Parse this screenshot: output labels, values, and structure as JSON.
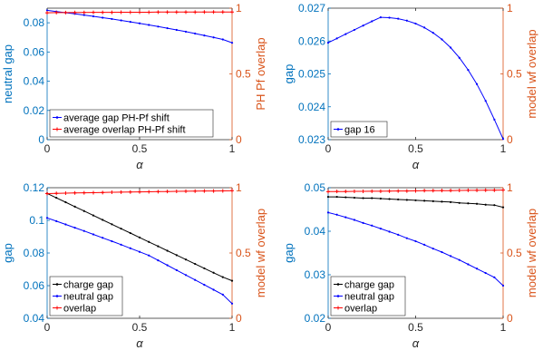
{
  "colors": {
    "left_axis": "#0072BD",
    "right_axis": "#D95319",
    "black": "#000000",
    "blue": "#0000FF",
    "red": "#FF0000"
  },
  "chart_data": [
    {
      "type": "line",
      "xlabel": "α",
      "ylabel_left": "neutral gap",
      "ylabel_right": "PH Pf overlap",
      "xlim": [
        0,
        1
      ],
      "ylim_left": [
        0,
        0.09
      ],
      "ylim_right": [
        0,
        1
      ],
      "xticks": [
        "0",
        "0.5",
        "1"
      ],
      "yticks_left": [
        "0",
        "0.02",
        "0.04",
        "0.06",
        "0.08"
      ],
      "yticks_right": [
        "0",
        "0.5",
        "1"
      ],
      "legend_position": "bottom-left",
      "series": [
        {
          "name": "average gap PH-Pf shift",
          "axis": "left",
          "color": "#0000FF",
          "marker": "dot",
          "x": [
            0,
            0.05,
            0.1,
            0.15,
            0.2,
            0.25,
            0.3,
            0.35,
            0.4,
            0.45,
            0.5,
            0.55,
            0.6,
            0.65,
            0.7,
            0.75,
            0.8,
            0.85,
            0.9,
            0.95,
            1
          ],
          "y": [
            0.0885,
            0.0877,
            0.0869,
            0.0861,
            0.0853,
            0.0844,
            0.0835,
            0.0826,
            0.0816,
            0.0806,
            0.0796,
            0.0785,
            0.0774,
            0.0763,
            0.0751,
            0.0739,
            0.0726,
            0.0713,
            0.07,
            0.0686,
            0.0663
          ]
        },
        {
          "name": "average overlap PH-Pf shift",
          "axis": "right",
          "color": "#FF0000",
          "marker": "plus",
          "x": [
            0,
            0.05,
            0.1,
            0.15,
            0.2,
            0.25,
            0.3,
            0.35,
            0.4,
            0.45,
            0.5,
            0.55,
            0.6,
            0.65,
            0.7,
            0.75,
            0.8,
            0.85,
            0.9,
            0.95,
            1
          ],
          "y": [
            0.965,
            0.966,
            0.966,
            0.967,
            0.967,
            0.968,
            0.968,
            0.968,
            0.969,
            0.969,
            0.969,
            0.969,
            0.97,
            0.97,
            0.97,
            0.97,
            0.97,
            0.971,
            0.971,
            0.971,
            0.971
          ]
        }
      ]
    },
    {
      "type": "line",
      "xlabel": "α",
      "ylabel_left": "gap",
      "ylabel_right": "model wf overlap",
      "xlim": [
        0,
        1
      ],
      "ylim_left": [
        0.023,
        0.027
      ],
      "ylim_right": [
        0,
        1
      ],
      "xticks": [
        "0",
        "0.5",
        "1"
      ],
      "yticks_left": [
        "0.023",
        "0.024",
        "0.025",
        "0.026",
        "0.027"
      ],
      "yticks_right": [
        "0",
        "0.5",
        "1"
      ],
      "legend_position": "bottom-left",
      "series": [
        {
          "name": "gap 16",
          "axis": "left",
          "color": "#0000FF",
          "marker": "dot",
          "x": [
            0,
            0.05,
            0.1,
            0.15,
            0.2,
            0.25,
            0.3,
            0.35,
            0.4,
            0.45,
            0.5,
            0.55,
            0.6,
            0.65,
            0.7,
            0.75,
            0.8,
            0.85,
            0.9,
            0.95,
            1
          ],
          "y": [
            0.02595,
            0.02608,
            0.02621,
            0.02634,
            0.02647,
            0.0266,
            0.02672,
            0.02671,
            0.02668,
            0.02662,
            0.02653,
            0.02641,
            0.02625,
            0.02605,
            0.0258,
            0.02549,
            0.02512,
            0.02469,
            0.02418,
            0.02361,
            0.02302
          ]
        }
      ]
    },
    {
      "type": "line",
      "xlabel": "α",
      "ylabel_left": "gap",
      "ylabel_right": "model wf overlap",
      "xlim": [
        0,
        1
      ],
      "ylim_left": [
        0.04,
        0.12
      ],
      "ylim_right": [
        0,
        1
      ],
      "xticks": [
        "0",
        "0.5",
        "1"
      ],
      "yticks_left": [
        "0.04",
        "0.06",
        "0.08",
        "0.1",
        "0.12"
      ],
      "yticks_right": [
        "0",
        "0.5",
        "1"
      ],
      "legend_position": "bottom-left",
      "series": [
        {
          "name": "charge gap",
          "axis": "left",
          "color": "#000000",
          "marker": "dot",
          "x": [
            0,
            0.05,
            0.1,
            0.15,
            0.2,
            0.25,
            0.3,
            0.35,
            0.4,
            0.45,
            0.5,
            0.55,
            0.6,
            0.65,
            0.7,
            0.75,
            0.8,
            0.85,
            0.9,
            0.95,
            1
          ],
          "y": [
            0.1165,
            0.1138,
            0.1111,
            0.1084,
            0.1057,
            0.103,
            0.1003,
            0.0976,
            0.0949,
            0.0922,
            0.0895,
            0.0868,
            0.0841,
            0.0814,
            0.0787,
            0.076,
            0.0733,
            0.0706,
            0.0679,
            0.0652,
            0.063
          ]
        },
        {
          "name": "neutral gap",
          "axis": "left",
          "color": "#0000FF",
          "marker": "dot",
          "x": [
            0,
            0.05,
            0.1,
            0.15,
            0.2,
            0.25,
            0.3,
            0.35,
            0.4,
            0.45,
            0.5,
            0.55,
            0.6,
            0.65,
            0.7,
            0.75,
            0.8,
            0.85,
            0.9,
            0.95,
            1
          ],
          "y": [
            0.1015,
            0.0995,
            0.0975,
            0.0955,
            0.0935,
            0.0914,
            0.0893,
            0.0872,
            0.0851,
            0.0829,
            0.0807,
            0.0785,
            0.0755,
            0.0725,
            0.0695,
            0.0665,
            0.0635,
            0.0605,
            0.0575,
            0.0545,
            0.049
          ]
        },
        {
          "name": "overlap",
          "axis": "right",
          "color": "#FF0000",
          "marker": "plus",
          "x": [
            0,
            0.05,
            0.1,
            0.15,
            0.2,
            0.25,
            0.3,
            0.35,
            0.4,
            0.45,
            0.5,
            0.55,
            0.6,
            0.65,
            0.7,
            0.75,
            0.8,
            0.85,
            0.9,
            0.95,
            1
          ],
          "y": [
            0.955,
            0.957,
            0.958,
            0.96,
            0.961,
            0.962,
            0.963,
            0.965,
            0.966,
            0.967,
            0.968,
            0.969,
            0.97,
            0.971,
            0.972,
            0.973,
            0.974,
            0.975,
            0.975,
            0.976,
            0.977
          ]
        }
      ]
    },
    {
      "type": "line",
      "xlabel": "α",
      "ylabel_left": "gap",
      "ylabel_right": "model wf overlap",
      "xlim": [
        0,
        1
      ],
      "ylim_left": [
        0.02,
        0.05
      ],
      "ylim_right": [
        0,
        1
      ],
      "xticks": [
        "0",
        "0.5",
        "1"
      ],
      "yticks_left": [
        "0.02",
        "0.03",
        "0.04",
        "0.05"
      ],
      "yticks_right": [
        "0",
        "0.5",
        "1"
      ],
      "legend_position": "bottom-left",
      "series": [
        {
          "name": "charge gap",
          "axis": "left",
          "color": "#000000",
          "marker": "dot",
          "x": [
            0,
            0.05,
            0.1,
            0.15,
            0.2,
            0.25,
            0.3,
            0.35,
            0.4,
            0.45,
            0.5,
            0.55,
            0.6,
            0.65,
            0.7,
            0.75,
            0.8,
            0.85,
            0.9,
            0.95,
            1
          ],
          "y": [
            0.0479,
            0.0479,
            0.0478,
            0.0477,
            0.0476,
            0.0476,
            0.0475,
            0.0474,
            0.0473,
            0.0472,
            0.0471,
            0.047,
            0.0469,
            0.0468,
            0.0467,
            0.0465,
            0.0464,
            0.0463,
            0.0461,
            0.046,
            0.0455
          ]
        },
        {
          "name": "neutral gap",
          "axis": "left",
          "color": "#0000FF",
          "marker": "dot",
          "x": [
            0,
            0.05,
            0.1,
            0.15,
            0.2,
            0.25,
            0.3,
            0.35,
            0.4,
            0.45,
            0.5,
            0.55,
            0.6,
            0.65,
            0.7,
            0.75,
            0.8,
            0.85,
            0.9,
            0.95,
            1
          ],
          "y": [
            0.0443,
            0.0438,
            0.0432,
            0.0426,
            0.0419,
            0.0413,
            0.0406,
            0.0399,
            0.0392,
            0.0384,
            0.0377,
            0.0369,
            0.036,
            0.0352,
            0.0343,
            0.0334,
            0.0324,
            0.0314,
            0.0304,
            0.0294,
            0.0275
          ]
        },
        {
          "name": "overlap",
          "axis": "right",
          "color": "#FF0000",
          "marker": "plus",
          "x": [
            0,
            0.05,
            0.1,
            0.15,
            0.2,
            0.25,
            0.3,
            0.35,
            0.4,
            0.45,
            0.5,
            0.55,
            0.6,
            0.65,
            0.7,
            0.75,
            0.8,
            0.85,
            0.9,
            0.95,
            1
          ],
          "y": [
            0.97,
            0.971,
            0.971,
            0.972,
            0.972,
            0.973,
            0.973,
            0.974,
            0.975,
            0.975,
            0.976,
            0.977,
            0.977,
            0.978,
            0.978,
            0.979,
            0.98,
            0.98,
            0.981,
            0.981,
            0.982
          ]
        }
      ]
    }
  ]
}
